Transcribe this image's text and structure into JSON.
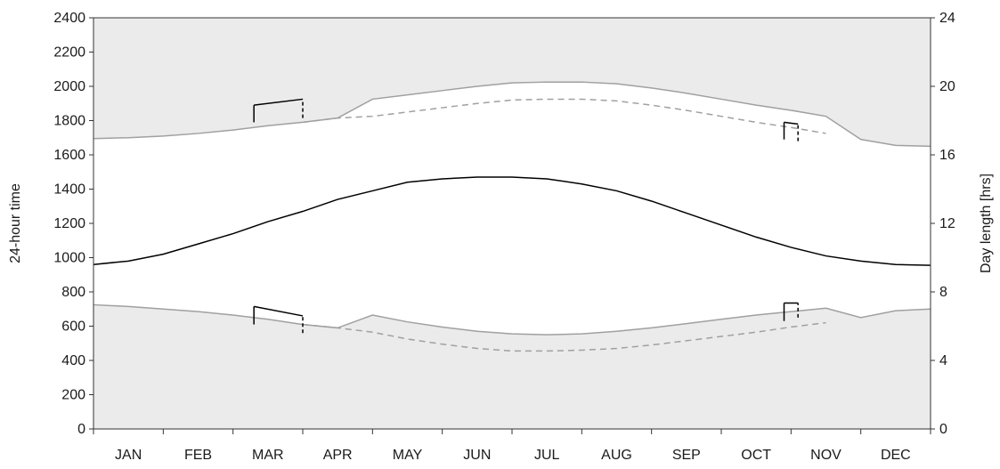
{
  "chart_data": {
    "type": "line",
    "categories": [
      "JAN",
      "FEB",
      "MAR",
      "APR",
      "MAY",
      "JUN",
      "JUL",
      "AUG",
      "SEP",
      "OCT",
      "NOV",
      "DEC"
    ],
    "x_unit_note": "",
    "ylabel": "24-hour time",
    "ylabel_right": "Day length [hrs]",
    "ylim": [
      0,
      2400
    ],
    "yticks": [
      0,
      200,
      400,
      600,
      800,
      1000,
      1200,
      1400,
      1600,
      1800,
      2000,
      2200,
      2400
    ],
    "ylim_right": [
      0,
      24
    ],
    "yticks_right": [
      0,
      4,
      8,
      12,
      16,
      20,
      24
    ],
    "grid": false,
    "legend": "none",
    "colors": {
      "night_fill": "#ebebeb",
      "boundary": "#a0a0a0",
      "dashed": "#a0a0a0",
      "daylength": "#000000",
      "dst_shift": "#000000"
    },
    "series": [
      {
        "role": "sunset",
        "style": "solid-gray",
        "x": [
          0,
          0.5,
          1,
          1.5,
          2,
          2.5,
          3,
          3.5,
          4,
          4.5,
          5,
          5.5,
          6,
          6.5,
          7,
          7.5,
          8,
          8.5,
          9,
          9.5,
          10,
          10.5,
          11,
          11.5,
          12
        ],
        "values": [
          1695,
          1700,
          1710,
          1725,
          1745,
          1770,
          1790,
          1815,
          1925,
          1950,
          1975,
          2000,
          2020,
          2025,
          2025,
          2015,
          1990,
          1960,
          1925,
          1890,
          1860,
          1825,
          1690,
          1655,
          1650
        ]
      },
      {
        "role": "sunset_standard_time",
        "style": "dashed-gray",
        "x": [
          3,
          3.5,
          4,
          4.5,
          5,
          5.5,
          6,
          6.5,
          7,
          7.5,
          8,
          8.5,
          9,
          9.5,
          10,
          10.5
        ],
        "values": [
          1790,
          1815,
          1825,
          1850,
          1875,
          1900,
          1920,
          1925,
          1925,
          1915,
          1890,
          1860,
          1825,
          1790,
          1760,
          1725
        ]
      },
      {
        "role": "sunrise",
        "style": "solid-gray",
        "x": [
          0,
          0.5,
          1,
          1.5,
          2,
          2.5,
          3,
          3.5,
          4,
          4.5,
          5,
          5.5,
          6,
          6.5,
          7,
          7.5,
          8,
          8.5,
          9,
          9.5,
          10,
          10.5,
          11,
          11.5,
          12
        ],
        "values": [
          725,
          715,
          700,
          685,
          665,
          640,
          610,
          590,
          665,
          625,
          595,
          570,
          555,
          550,
          555,
          570,
          590,
          615,
          640,
          665,
          685,
          705,
          650,
          690,
          700
        ]
      },
      {
        "role": "sunrise_standard_time",
        "style": "dashed-gray",
        "x": [
          3,
          3.5,
          4,
          4.5,
          5,
          5.5,
          6,
          6.5,
          7,
          7.5,
          8,
          8.5,
          9,
          9.5,
          10,
          10.5
        ],
        "values": [
          610,
          590,
          565,
          525,
          495,
          470,
          455,
          455,
          460,
          470,
          490,
          515,
          540,
          565,
          595,
          620
        ]
      },
      {
        "role": "day_length",
        "style": "solid-black",
        "axis": "right",
        "x": [
          0,
          0.5,
          1,
          1.5,
          2,
          2.5,
          3,
          3.5,
          4,
          4.5,
          5,
          5.5,
          6,
          6.5,
          7,
          7.5,
          8,
          8.5,
          9,
          9.5,
          10,
          10.5,
          11,
          11.5,
          12
        ],
        "values": [
          9.6,
          9.8,
          10.2,
          10.8,
          11.4,
          12.1,
          12.7,
          13.4,
          13.9,
          14.4,
          14.6,
          14.7,
          14.7,
          14.6,
          14.3,
          13.9,
          13.3,
          12.6,
          11.9,
          11.2,
          10.6,
          10.1,
          9.8,
          9.6,
          9.55
        ]
      }
    ],
    "dst_markers": [
      {
        "month_pos": 2.3,
        "sunset_from": 1790,
        "sunset_to": 1890,
        "sunrise_from": 610,
        "sunrise_to": 715
      },
      {
        "month_pos": 3.0,
        "sunset_from": 1815,
        "sunset_to": 1925,
        "sunrise_from": 560,
        "sunrise_to": 660
      },
      {
        "month_pos": 9.9,
        "sunset_from": 1690,
        "sunset_to": 1790,
        "sunrise_from": 630,
        "sunrise_to": 735
      },
      {
        "month_pos": 10.1,
        "sunset_from": 1680,
        "sunset_to": 1780,
        "sunrise_from": 650,
        "sunrise_to": 735
      }
    ]
  }
}
